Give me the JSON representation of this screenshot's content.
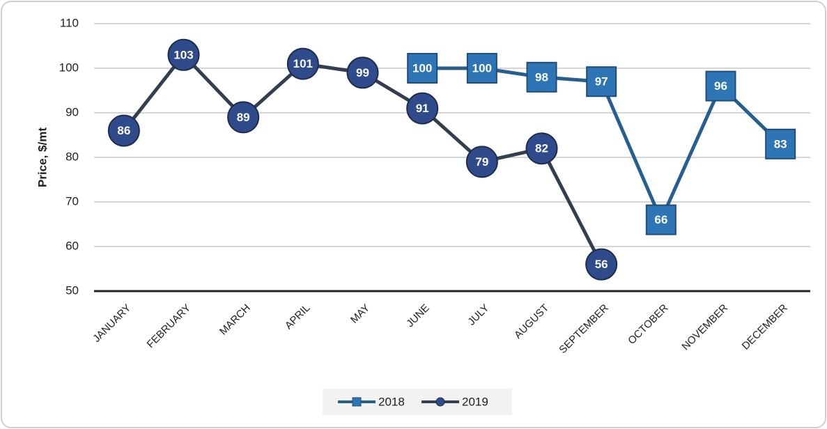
{
  "chart_data": {
    "type": "line",
    "y_label": "Price, $/mt",
    "categories": [
      "JANUARY",
      "FEBRUARY",
      "MARCH",
      "APRIL",
      "MAY",
      "JUNE",
      "JULY",
      "AUGUST",
      "SEPTEMBER",
      "OCTOBER",
      "NOVEMBER",
      "DECEMBER"
    ],
    "series": [
      {
        "name": "2018",
        "color": "#2e75b6",
        "line_color": "#265f8f",
        "marker": "square",
        "values": [
          null,
          null,
          null,
          null,
          null,
          100,
          100,
          98,
          97,
          66,
          96,
          83
        ]
      },
      {
        "name": "2019",
        "color": "#2f4b8c",
        "line_color": "#333f50",
        "marker": "circle",
        "values": [
          86,
          103,
          89,
          101,
          99,
          91,
          79,
          82,
          56,
          null,
          null,
          null
        ]
      }
    ],
    "ylim": [
      50,
      110
    ],
    "yticks": [
      50,
      60,
      70,
      80,
      90,
      100,
      110
    ],
    "grid": true,
    "legend": "bottom"
  }
}
